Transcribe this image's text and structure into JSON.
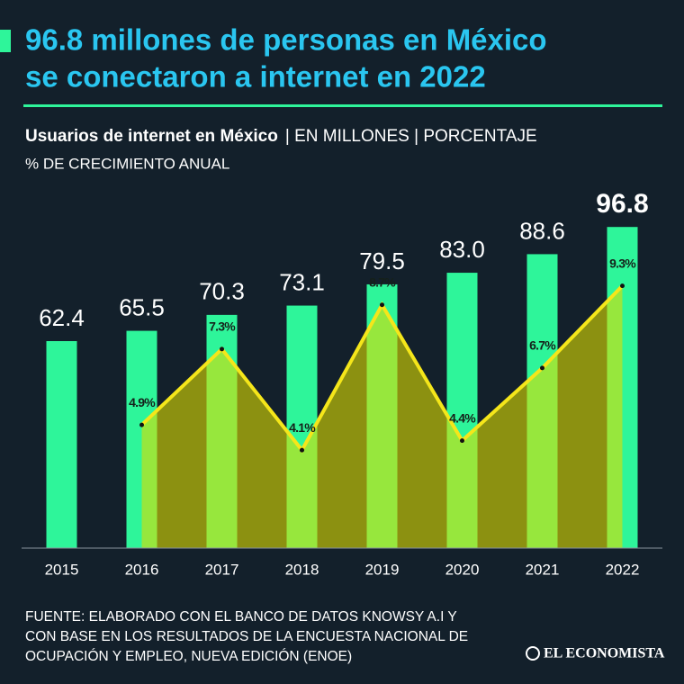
{
  "chart_data": {
    "type": "bar",
    "title": [
      "96.8 millones de personas en México",
      "se conectaron a internet en 2022"
    ],
    "subtitle": "Usuarios de internet en México",
    "units": "| EN MILLONES | PORCENTAJE",
    "subtitle_2": "% DE CRECIMIENTO ANUAL",
    "categories": [
      "2015",
      "2016",
      "2017",
      "2018",
      "2019",
      "2020",
      "2021",
      "2022"
    ],
    "series": [
      {
        "type": "bar",
        "color": "#2ef59a",
        "values": [
          62.4,
          65.5,
          70.3,
          73.1,
          79.5,
          83.0,
          88.6,
          96.8
        ],
        "value_labels": [
          "62.4",
          "65.5",
          "70.3",
          "73.1",
          "79.5",
          "83.0",
          "88.6",
          "96.8"
        ]
      },
      {
        "type": "line",
        "axis": "y2",
        "color": "#f5e61a",
        "area_color": "rgba(222,222,0,0.6)",
        "values": [
          null,
          4.9,
          7.3,
          4.1,
          8.7,
          4.4,
          6.7,
          9.3
        ],
        "value_labels": [
          null,
          "4.9%",
          "7.3%",
          "4.1%",
          "8.7%",
          "4.4%",
          "6.7%",
          "9.3%"
        ]
      }
    ],
    "ylim": [
      0,
      100
    ],
    "y2lim": [
      1,
      11.5
    ],
    "source": [
      "FUENTE: ELABORADO CON EL BANCO DE DATOS KNOWSY A.I Y",
      "CON BASE EN LOS RESULTADOS DE LA ENCUESTA NACIONAL DE",
      "OCUPACIÓN Y EMPLEO, NUEVA EDICIÓN (ENOE)"
    ],
    "brand": "EL ECONOMISTA"
  }
}
